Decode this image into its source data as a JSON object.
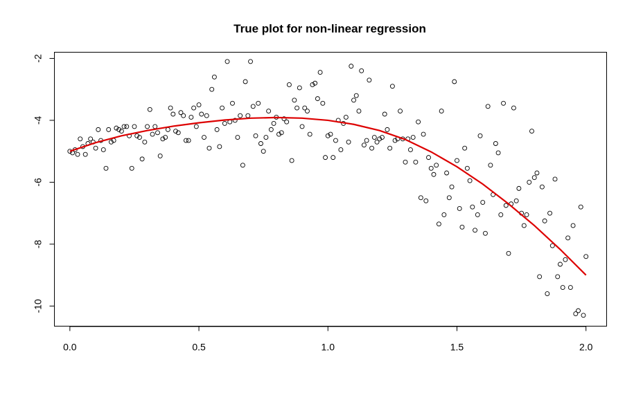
{
  "chart_data": {
    "type": "scatter",
    "title": "True plot for non-linear regression",
    "xlabel": "",
    "ylabel": "",
    "xlim": [
      -0.06,
      2.08
    ],
    "ylim": [
      -10.65,
      -1.8
    ],
    "xticks": [
      0.0,
      0.5,
      1.0,
      1.5,
      2.0
    ],
    "xtick_labels": [
      "0.0",
      "0.5",
      "1.0",
      "1.5",
      "2.0"
    ],
    "yticks": [
      -10,
      -8,
      -6,
      -4,
      -2
    ],
    "ytick_labels": [
      "-10",
      "-8",
      "-6",
      "-4",
      "-2"
    ],
    "grid": false,
    "colors": {
      "points": "#000000",
      "curve": "#dd0000"
    },
    "points": {
      "x": [
        0.0,
        0.01,
        0.02,
        0.03,
        0.04,
        0.05,
        0.06,
        0.07,
        0.08,
        0.09,
        0.1,
        0.11,
        0.12,
        0.13,
        0.14,
        0.15,
        0.16,
        0.17,
        0.18,
        0.19,
        0.2,
        0.21,
        0.22,
        0.23,
        0.24,
        0.25,
        0.26,
        0.27,
        0.28,
        0.29,
        0.3,
        0.31,
        0.32,
        0.33,
        0.34,
        0.35,
        0.36,
        0.37,
        0.38,
        0.39,
        0.4,
        0.41,
        0.42,
        0.43,
        0.44,
        0.45,
        0.46,
        0.47,
        0.48,
        0.49,
        0.5,
        0.51,
        0.52,
        0.53,
        0.54,
        0.55,
        0.56,
        0.57,
        0.58,
        0.59,
        0.6,
        0.61,
        0.62,
        0.63,
        0.64,
        0.65,
        0.66,
        0.67,
        0.68,
        0.69,
        0.7,
        0.71,
        0.72,
        0.73,
        0.74,
        0.75,
        0.76,
        0.77,
        0.78,
        0.79,
        0.8,
        0.81,
        0.82,
        0.83,
        0.84,
        0.85,
        0.86,
        0.87,
        0.88,
        0.89,
        0.9,
        0.91,
        0.92,
        0.93,
        0.94,
        0.95,
        0.96,
        0.97,
        0.98,
        0.99,
        1.0,
        1.01,
        1.02,
        1.03,
        1.04,
        1.05,
        1.06,
        1.07,
        1.08,
        1.09,
        1.1,
        1.11,
        1.12,
        1.13,
        1.14,
        1.15,
        1.16,
        1.17,
        1.18,
        1.19,
        1.2,
        1.21,
        1.22,
        1.23,
        1.24,
        1.25,
        1.26,
        1.27,
        1.28,
        1.29,
        1.3,
        1.31,
        1.32,
        1.33,
        1.34,
        1.35,
        1.36,
        1.37,
        1.38,
        1.39,
        1.4,
        1.41,
        1.42,
        1.43,
        1.44,
        1.45,
        1.46,
        1.47,
        1.48,
        1.49,
        1.5,
        1.51,
        1.52,
        1.53,
        1.54,
        1.55,
        1.56,
        1.57,
        1.58,
        1.59,
        1.6,
        1.61,
        1.62,
        1.63,
        1.64,
        1.65,
        1.66,
        1.67,
        1.68,
        1.69,
        1.7,
        1.71,
        1.72,
        1.73,
        1.74,
        1.75,
        1.76,
        1.77,
        1.78,
        1.79,
        1.8,
        1.81,
        1.82,
        1.83,
        1.84,
        1.85,
        1.86,
        1.87,
        1.88,
        1.89,
        1.9,
        1.91,
        1.92,
        1.93,
        1.94,
        1.95,
        1.96,
        1.97,
        1.98,
        1.99,
        2.0
      ],
      "y": [
        -5.0,
        -5.05,
        -4.95,
        -5.1,
        -4.6,
        -4.85,
        -5.1,
        -4.75,
        -4.6,
        -4.7,
        -4.9,
        -4.3,
        -4.65,
        -4.95,
        -5.55,
        -4.3,
        -4.7,
        -4.65,
        -4.25,
        -4.3,
        -4.35,
        -4.2,
        -4.2,
        -4.5,
        -5.55,
        -4.2,
        -4.5,
        -4.55,
        -5.25,
        -4.7,
        -4.2,
        -3.65,
        -4.45,
        -4.2,
        -4.4,
        -5.15,
        -4.6,
        -4.55,
        -4.3,
        -3.6,
        -3.8,
        -4.35,
        -4.4,
        -3.75,
        -3.85,
        -4.65,
        -4.65,
        -3.9,
        -3.6,
        -4.2,
        -3.5,
        -3.8,
        -4.55,
        -3.85,
        -4.9,
        -3.0,
        -2.6,
        -4.3,
        -4.85,
        -3.6,
        -4.1,
        -2.1,
        -4.05,
        -3.45,
        -4.0,
        -4.55,
        -3.85,
        -5.45,
        -2.75,
        -3.85,
        -2.1,
        -3.55,
        -4.5,
        -3.45,
        -4.75,
        -5.0,
        -4.55,
        -3.7,
        -4.3,
        -4.1,
        -3.9,
        -4.45,
        -4.4,
        -3.95,
        -4.05,
        -2.85,
        -5.3,
        -3.35,
        -3.6,
        -2.95,
        -4.2,
        -3.6,
        -3.7,
        -4.45,
        -2.85,
        -2.8,
        -3.3,
        -2.45,
        -3.45,
        -5.2,
        -4.5,
        -4.45,
        -5.2,
        -4.65,
        -4.0,
        -4.95,
        -4.1,
        -3.9,
        -4.7,
        -2.25,
        -3.35,
        -3.2,
        -3.7,
        -2.4,
        -4.8,
        -4.65,
        -2.7,
        -4.9,
        -4.55,
        -4.7,
        -4.6,
        -4.55,
        -3.8,
        -4.3,
        -4.9,
        -2.9,
        -4.65,
        -4.6,
        -3.7,
        -4.6,
        -5.35,
        -4.6,
        -4.95,
        -4.55,
        -5.35,
        -4.05,
        -6.5,
        -4.45,
        -6.6,
        -5.2,
        -5.55,
        -5.75,
        -5.45,
        -7.35,
        -3.7,
        -7.05,
        -5.7,
        -6.5,
        -6.15,
        -2.75,
        -5.3,
        -6.85,
        -7.45,
        -4.9,
        -5.55,
        -5.95,
        -6.8,
        -7.55,
        -7.05,
        -4.5,
        -6.65,
        -7.65,
        -3.55,
        -5.45,
        -6.4,
        -4.75,
        -5.05,
        -7.05,
        -3.45,
        -6.75,
        -8.3,
        -6.7,
        -3.6,
        -6.6,
        -6.2,
        -7.0,
        -7.4,
        -7.05,
        -6.0,
        -4.35,
        -5.85,
        -5.7,
        -9.05,
        -6.15,
        -7.25,
        -9.6,
        -7.0,
        -8.05,
        -5.9,
        -9.05,
        -8.65,
        -9.4,
        -8.5,
        -7.8,
        -9.4,
        -7.4,
        -10.25,
        -10.15,
        -6.8,
        -10.3,
        -8.4
      ]
    },
    "curve": {
      "x": [
        0.0,
        0.1,
        0.2,
        0.3,
        0.4,
        0.5,
        0.6,
        0.7,
        0.8,
        0.9,
        1.0,
        1.1,
        1.2,
        1.3,
        1.4,
        1.5,
        1.6,
        1.7,
        1.8,
        1.9,
        2.0
      ],
      "y": [
        -5.0,
        -4.72,
        -4.5,
        -4.33,
        -4.19,
        -4.08,
        -3.99,
        -3.93,
        -3.91,
        -3.93,
        -4.0,
        -4.13,
        -4.33,
        -4.62,
        -5.02,
        -5.5,
        -6.06,
        -6.7,
        -7.4,
        -8.17,
        -9.0
      ]
    }
  }
}
